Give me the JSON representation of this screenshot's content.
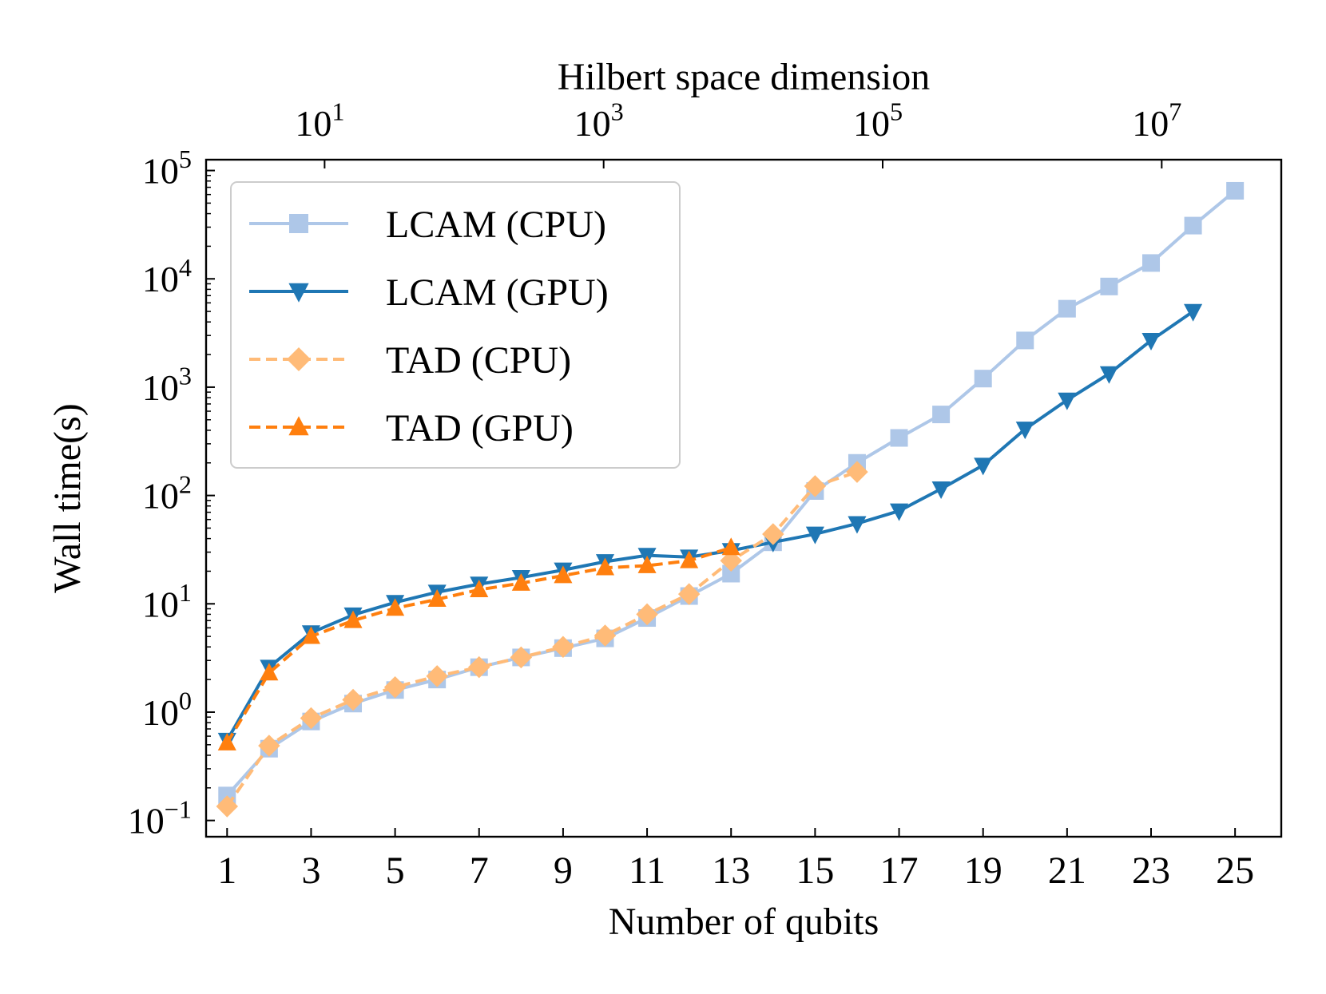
{
  "chart_data": {
    "type": "line",
    "title": "",
    "xlabel": "Number of qubits",
    "ylabel": "Wall time(s)",
    "top_xlabel": "Hilbert space dimension",
    "xlim": [
      0.5,
      26.1
    ],
    "ylim_log10": [
      -1.15,
      5.1
    ],
    "yscale": "log",
    "x_ticks": [
      1,
      3,
      5,
      7,
      9,
      11,
      13,
      15,
      17,
      19,
      21,
      23,
      25
    ],
    "x_tick_labels": [
      "1",
      "3",
      "5",
      "7",
      "9",
      "11",
      "13",
      "15",
      "17",
      "19",
      "21",
      "23",
      "25"
    ],
    "y_ticks": [
      {
        "base": "10",
        "exp": "−1",
        "value": 0.1
      },
      {
        "base": "10",
        "exp": "0",
        "value": 1
      },
      {
        "base": "10",
        "exp": "1",
        "value": 10
      },
      {
        "base": "10",
        "exp": "2",
        "value": 100
      },
      {
        "base": "10",
        "exp": "3",
        "value": 1000
      },
      {
        "base": "10",
        "exp": "4",
        "value": 10000
      },
      {
        "base": "10",
        "exp": "5",
        "value": 100000
      }
    ],
    "top_ticks": [
      {
        "base": "10",
        "exp": "1",
        "qubits": 3.3219
      },
      {
        "base": "10",
        "exp": "3",
        "qubits": 9.9658
      },
      {
        "base": "10",
        "exp": "5",
        "qubits": 16.6096
      },
      {
        "base": "10",
        "exp": "7",
        "qubits": 23.2535
      }
    ],
    "legend_position": "top-left",
    "series": [
      {
        "name": "LCAM (CPU)",
        "color": "#aec7e8",
        "marker": "square",
        "linestyle": "solid",
        "x": [
          1,
          2,
          3,
          4,
          5,
          6,
          7,
          8,
          9,
          10,
          11,
          12,
          13,
          14,
          15,
          16,
          17,
          18,
          19,
          20,
          21,
          22,
          23,
          24,
          25
        ],
        "y": [
          0.17,
          0.46,
          0.82,
          1.2,
          1.6,
          2.0,
          2.6,
          3.2,
          3.9,
          4.8,
          7.4,
          11.8,
          19,
          37,
          110,
          200,
          340,
          560,
          1200,
          2700,
          5300,
          8500,
          14000,
          31000,
          65000
        ]
      },
      {
        "name": "LCAM (GPU)",
        "color": "#1f77b4",
        "marker": "triangle-down",
        "linestyle": "solid",
        "x": [
          1,
          2,
          3,
          4,
          5,
          6,
          7,
          8,
          9,
          10,
          11,
          12,
          13,
          14,
          15,
          16,
          17,
          18,
          19,
          20,
          21,
          22,
          23,
          24
        ],
        "y": [
          0.55,
          2.6,
          5.4,
          7.9,
          10.3,
          12.8,
          15.2,
          17.5,
          20.5,
          24.5,
          28,
          27,
          31,
          37,
          44,
          55,
          72,
          115,
          190,
          410,
          760,
          1330,
          2700,
          5000
        ]
      },
      {
        "name": "TAD (CPU)",
        "color": "#ffbb78",
        "marker": "diamond",
        "linestyle": "dashed",
        "x": [
          1,
          2,
          3,
          4,
          5,
          6,
          7,
          8,
          9,
          10,
          11,
          12,
          13,
          14,
          15,
          16
        ],
        "y": [
          0.135,
          0.49,
          0.88,
          1.3,
          1.7,
          2.15,
          2.6,
          3.2,
          4.0,
          5.1,
          8.0,
          12.3,
          25,
          44,
          122,
          165
        ]
      },
      {
        "name": "TAD (GPU)",
        "color": "#ff7f0e",
        "marker": "triangle-up",
        "linestyle": "dashed",
        "x": [
          1,
          2,
          3,
          4,
          5,
          6,
          7,
          8,
          9,
          10,
          11,
          12,
          13
        ],
        "y": [
          0.52,
          2.3,
          5.0,
          7.0,
          9.1,
          11.0,
          13.5,
          15.5,
          18.2,
          21.5,
          22.5,
          25,
          33
        ]
      }
    ]
  }
}
